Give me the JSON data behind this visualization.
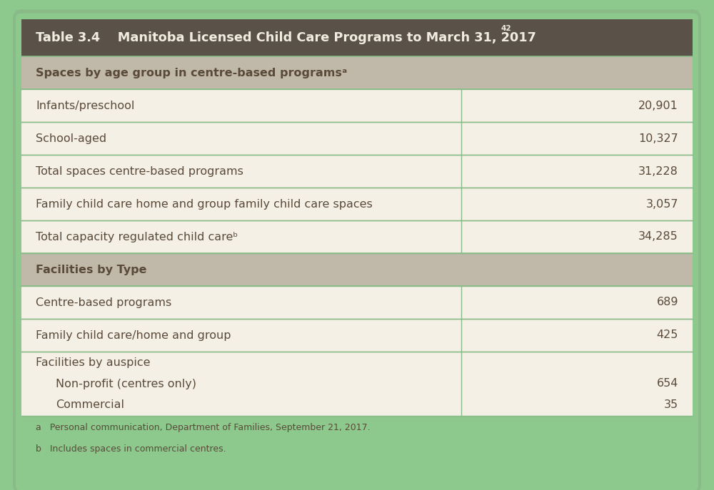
{
  "bg_color": "#8dc88d",
  "header_bg": "#5a5248",
  "header_text_color": "#f0ece0",
  "section_bg": "#c0b8a8",
  "section_text_color": "#5a4a3a",
  "row_bg": "#f5f0e5",
  "row_border_color": "#88bb88",
  "outer_border_color": "#88bb88",
  "text_color": "#5a4a3a",
  "footnote_text_color": "#5a4a3a",
  "header_label": "Table 3.4    Manitoba Licensed Child Care Programs to March 31, 2017",
  "header_superscript": "42",
  "section1_label": "Spaces by age group in centre-based programsᵃ",
  "section2_label": "Facilities by Type",
  "rows": [
    {
      "label": "Infants/preschool",
      "value": "20,901"
    },
    {
      "label": "School-aged",
      "value": "10,327"
    },
    {
      "label": "Total spaces centre-based programs",
      "value": "31,228"
    },
    {
      "label": "Family child care home and group family child care spaces",
      "value": "3,057"
    },
    {
      "label": "Total capacity regulated child careᵇ",
      "value": "34,285"
    },
    {
      "label": "Centre-based programs",
      "value": "689"
    },
    {
      "label": "Family child care/home and group",
      "value": "425"
    }
  ],
  "multi_label": "Facilities by auspice",
  "multi_sub": [
    {
      "label": "Non-profit (centres only)",
      "value": "654"
    },
    {
      "label": "Commercial",
      "value": "35"
    }
  ],
  "footnotes": [
    "a   Personal communication, Department of Families, September 21, 2017.",
    "b   Includes spaces in commercial centres."
  ],
  "col_split": 0.655
}
